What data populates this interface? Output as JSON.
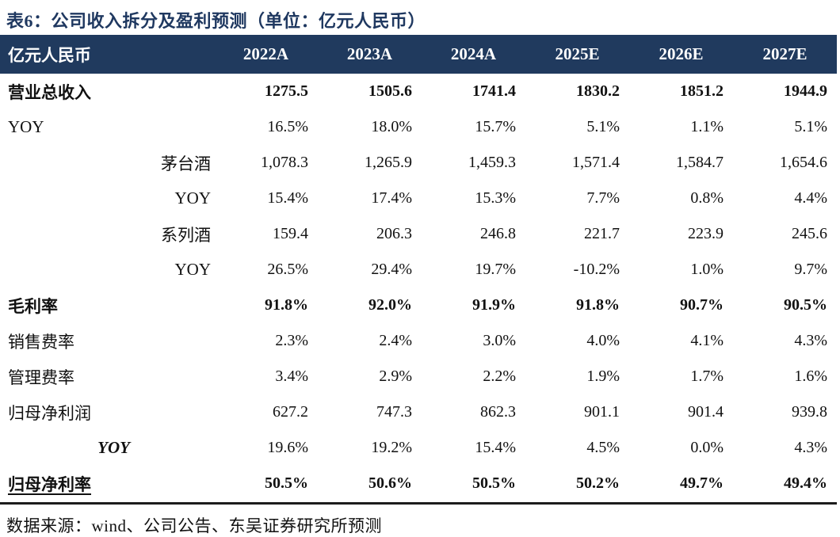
{
  "title": "表6：公司收入拆分及盈利预测（单位：亿元人民币）",
  "table": {
    "unit_label": "亿元人民币",
    "columns": [
      "2022A",
      "2023A",
      "2024A",
      "2025E",
      "2026E",
      "2027E"
    ],
    "rows": [
      {
        "label": "营业总收入",
        "indent": "none",
        "label_bold": true,
        "label_italic": false,
        "underline_label": false,
        "values_bold": true,
        "values": [
          "1275.5",
          "1505.6",
          "1741.4",
          "1830.2",
          "1851.2",
          "1944.9"
        ]
      },
      {
        "label": "YOY",
        "indent": "none",
        "label_bold": false,
        "label_italic": false,
        "underline_label": false,
        "values_bold": false,
        "values": [
          "16.5%",
          "18.0%",
          "15.7%",
          "5.1%",
          "1.1%",
          "5.1%"
        ]
      },
      {
        "label": "茅台酒",
        "indent": "sub",
        "label_bold": false,
        "label_italic": false,
        "underline_label": false,
        "values_bold": false,
        "values": [
          "1,078.3",
          "1,265.9",
          "1,459.3",
          "1,571.4",
          "1,584.7",
          "1,654.6"
        ]
      },
      {
        "label": "YOY",
        "indent": "sub",
        "label_bold": false,
        "label_italic": false,
        "underline_label": false,
        "values_bold": false,
        "values": [
          "15.4%",
          "17.4%",
          "15.3%",
          "7.7%",
          "0.8%",
          "4.4%"
        ]
      },
      {
        "label": "系列酒",
        "indent": "sub",
        "label_bold": false,
        "label_italic": false,
        "underline_label": false,
        "values_bold": false,
        "values": [
          "159.4",
          "206.3",
          "246.8",
          "221.7",
          "223.9",
          "245.6"
        ]
      },
      {
        "label": "YOY",
        "indent": "sub",
        "label_bold": false,
        "label_italic": false,
        "underline_label": false,
        "values_bold": false,
        "values": [
          "26.5%",
          "29.4%",
          "19.7%",
          "-10.2%",
          "1.0%",
          "9.7%"
        ]
      },
      {
        "label": "毛利率",
        "indent": "none",
        "label_bold": true,
        "label_italic": false,
        "underline_label": false,
        "values_bold": true,
        "values": [
          "91.8%",
          "92.0%",
          "91.9%",
          "91.8%",
          "90.7%",
          "90.5%"
        ]
      },
      {
        "label": "销售费率",
        "indent": "none",
        "label_bold": false,
        "label_italic": false,
        "underline_label": false,
        "values_bold": false,
        "values": [
          "2.3%",
          "2.4%",
          "3.0%",
          "4.0%",
          "4.1%",
          "4.3%"
        ]
      },
      {
        "label": "管理费率",
        "indent": "none",
        "label_bold": false,
        "label_italic": false,
        "underline_label": false,
        "values_bold": false,
        "values": [
          "3.4%",
          "2.9%",
          "2.2%",
          "1.9%",
          "1.7%",
          "1.6%"
        ]
      },
      {
        "label": "归母净利润",
        "indent": "none",
        "label_bold": false,
        "label_italic": false,
        "underline_label": false,
        "values_bold": false,
        "values": [
          "627.2",
          "747.3",
          "862.3",
          "901.1",
          "901.4",
          "939.8"
        ]
      },
      {
        "label": "YOY",
        "indent": "mid",
        "label_bold": true,
        "label_italic": true,
        "underline_label": false,
        "values_bold": false,
        "values": [
          "19.6%",
          "19.2%",
          "15.4%",
          "4.5%",
          "0.0%",
          "4.3%"
        ]
      },
      {
        "label": "归母净利率",
        "indent": "none",
        "label_bold": true,
        "label_italic": false,
        "underline_label": true,
        "values_bold": true,
        "values": [
          "50.5%",
          "50.6%",
          "50.5%",
          "50.2%",
          "49.7%",
          "49.4%"
        ]
      }
    ]
  },
  "footer": {
    "source": "数据来源：wind、公司公告、东吴证券研究所预测"
  },
  "colors": {
    "header_bg": "#203a5e",
    "title_color": "#1f3860",
    "rule_color": "#1c1c1c"
  }
}
